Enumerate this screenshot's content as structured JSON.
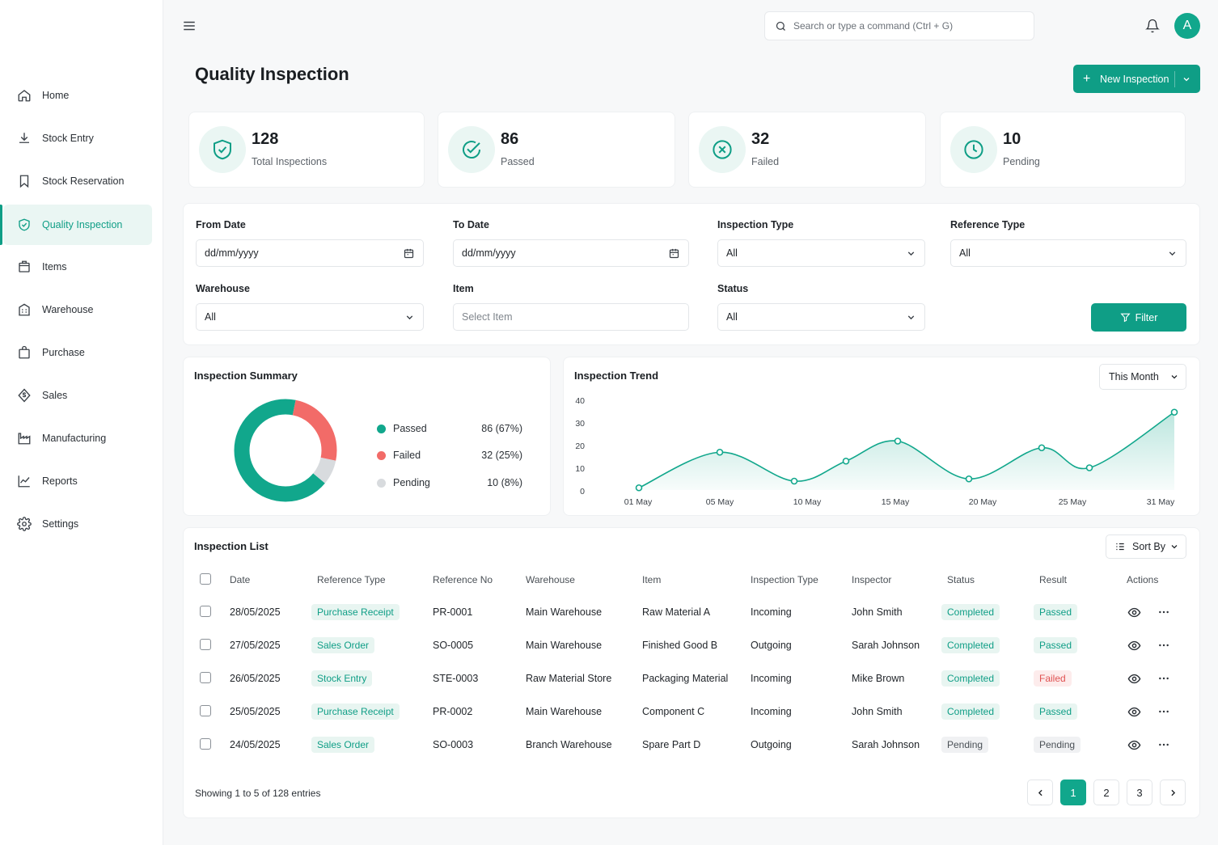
{
  "topbar": {
    "search_placeholder": "Search or type a command (Ctrl + G)",
    "avatar_letter": "A"
  },
  "sidebar": {
    "items": [
      {
        "label": "Home",
        "icon": "home-icon"
      },
      {
        "label": "Stock Entry",
        "icon": "download-icon"
      },
      {
        "label": "Stock Reservation",
        "icon": "bookmark-icon"
      },
      {
        "label": "Quality Inspection",
        "icon": "shield-check-icon",
        "active": true
      },
      {
        "label": "Items",
        "icon": "box-icon"
      },
      {
        "label": "Warehouse",
        "icon": "building-icon"
      },
      {
        "label": "Purchase",
        "icon": "shopping-bag-icon"
      },
      {
        "label": "Sales",
        "icon": "dollar-icon"
      },
      {
        "label": "Manufacturing",
        "icon": "factory-icon"
      },
      {
        "label": "Reports",
        "icon": "chart-icon"
      },
      {
        "label": "Settings",
        "icon": "gear-icon"
      }
    ]
  },
  "page": {
    "title": "Quality Inspection",
    "new_button": "New Inspection"
  },
  "stats": [
    {
      "value": "128",
      "label": "Total Inspections",
      "icon": "shield-check-icon"
    },
    {
      "value": "86",
      "label": "Passed",
      "icon": "check-circle-icon"
    },
    {
      "value": "32",
      "label": "Failed",
      "icon": "x-circle-icon"
    },
    {
      "value": "10",
      "label": "Pending",
      "icon": "clock-icon"
    }
  ],
  "filters": {
    "from_date": {
      "label": "From Date",
      "value": "dd/mm/yyyy"
    },
    "to_date": {
      "label": "To Date",
      "value": "dd/mm/yyyy"
    },
    "inspection_type": {
      "label": "Inspection Type",
      "value": "All"
    },
    "reference_type": {
      "label": "Reference Type",
      "value": "All"
    },
    "warehouse": {
      "label": "Warehouse",
      "value": "All"
    },
    "item": {
      "label": "Item",
      "placeholder": "Select Item"
    },
    "status": {
      "label": "Status",
      "value": "All"
    },
    "button": "Filter"
  },
  "summary": {
    "title": "Inspection Summary",
    "legend": [
      {
        "label": "Passed",
        "value": "86 (67%)",
        "color": "#11a78c"
      },
      {
        "label": "Failed",
        "value": "32 (25%)",
        "color": "#f26b68"
      },
      {
        "label": "Pending",
        "value": "10 (8%)",
        "color": "#d8dbde"
      }
    ]
  },
  "chart_data": [
    {
      "type": "pie",
      "title": "Inspection Summary",
      "categories": [
        "Passed",
        "Failed",
        "Pending"
      ],
      "values": [
        86,
        32,
        10
      ],
      "colors": [
        "#11a78c",
        "#f26b68",
        "#d8dbde"
      ]
    },
    {
      "type": "area",
      "title": "Inspection Trend",
      "x": [
        "01 May",
        "05 May",
        "10 May",
        "13 May",
        "15 May",
        "20 May",
        "24 May",
        "27 May",
        "31 May"
      ],
      "values": [
        1,
        17,
        4,
        13,
        22,
        5,
        19,
        10,
        35
      ],
      "x_ticks": [
        "01 May",
        "05 May",
        "10 May",
        "15 May",
        "20 May",
        "25 May",
        "31 May"
      ],
      "y_ticks": [
        "40",
        "30",
        "20",
        "10",
        "0"
      ],
      "ylim": [
        0,
        40
      ],
      "color": "#11a78c"
    }
  ],
  "trend": {
    "title": "Inspection Trend",
    "period": "This Month"
  },
  "list": {
    "title": "Inspection List",
    "sort_label": "Sort By",
    "columns": [
      "Date",
      "Reference Type",
      "Reference No",
      "Warehouse",
      "Item",
      "Inspection Type",
      "Inspector",
      "Status",
      "Result",
      "Actions"
    ],
    "rows": [
      {
        "date": "28/05/2025",
        "ref_type": "Purchase Receipt",
        "ref_no": "PR-0001",
        "warehouse": "Main Warehouse",
        "item": "Raw Material A",
        "insp_type": "Incoming",
        "inspector": "John Smith",
        "status": "Completed",
        "result": "Passed"
      },
      {
        "date": "27/05/2025",
        "ref_type": "Sales Order",
        "ref_no": "SO-0005",
        "warehouse": "Main Warehouse",
        "item": "Finished Good B",
        "insp_type": "Outgoing",
        "inspector": "Sarah Johnson",
        "status": "Completed",
        "result": "Passed"
      },
      {
        "date": "26/05/2025",
        "ref_type": "Stock Entry",
        "ref_no": "STE-0003",
        "warehouse": "Raw Material Store",
        "item": "Packaging Material",
        "insp_type": "Incoming",
        "inspector": "Mike Brown",
        "status": "Completed",
        "result": "Failed"
      },
      {
        "date": "25/05/2025",
        "ref_type": "Purchase Receipt",
        "ref_no": "PR-0002",
        "warehouse": "Main Warehouse",
        "item": "Component C",
        "insp_type": "Incoming",
        "inspector": "John Smith",
        "status": "Completed",
        "result": "Passed"
      },
      {
        "date": "24/05/2025",
        "ref_type": "Sales Order",
        "ref_no": "SO-0003",
        "warehouse": "Branch Warehouse",
        "item": "Spare Part D",
        "insp_type": "Outgoing",
        "inspector": "Sarah Johnson",
        "status": "Pending",
        "result": "Pending"
      }
    ],
    "showing": "Showing 1 to 5 of 128 entries",
    "pages": [
      "1",
      "2",
      "3"
    ]
  }
}
